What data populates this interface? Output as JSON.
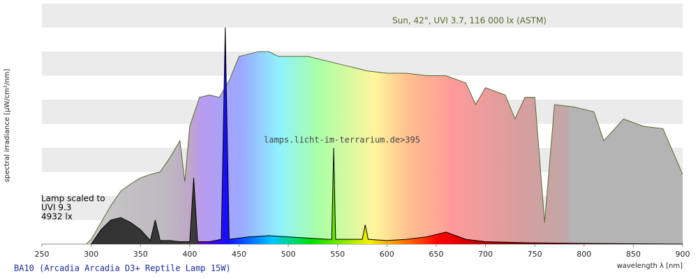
{
  "chart_data": {
    "type": "area",
    "x_label": "wavelength λ [nm]",
    "y_label": "spectral irradiance [µW/cm²/nm]",
    "xlim": [
      250,
      900
    ],
    "xticks": [
      250,
      300,
      350,
      400,
      450,
      500,
      550,
      600,
      650,
      700,
      750,
      800,
      850,
      900
    ],
    "ylim": [
      0,
      10
    ],
    "grid": true,
    "watermark": "lamps.licht-im-terrarium.de>395",
    "annotation": [
      "Lamp scaled to",
      "UVI 9.3",
      "4932 lx"
    ],
    "series": [
      {
        "name": "Sun, 42°, UVI 3.7, 116 000 lx (ASTM)",
        "color": "#556b2f",
        "x": [
          295,
          300,
          310,
          320,
          330,
          340,
          350,
          360,
          370,
          380,
          390,
          395,
          400,
          410,
          420,
          430,
          440,
          450,
          460,
          470,
          480,
          490,
          500,
          520,
          540,
          560,
          580,
          600,
          620,
          640,
          660,
          680,
          690,
          700,
          720,
          730,
          740,
          750,
          760,
          770,
          790,
          810,
          820,
          840,
          860,
          880,
          900
        ],
        "values": [
          0,
          0.2,
          0.9,
          1.6,
          2.2,
          2.5,
          2.75,
          2.9,
          3.0,
          3.6,
          4.3,
          2.6,
          4.9,
          6.1,
          6.2,
          6.1,
          6.8,
          7.8,
          7.9,
          8.0,
          8.0,
          7.8,
          7.8,
          7.8,
          7.6,
          7.4,
          7.2,
          7.1,
          7.1,
          7.0,
          7.0,
          6.7,
          5.8,
          6.5,
          6.2,
          5.2,
          6.1,
          6.1,
          0.9,
          5.8,
          5.7,
          5.5,
          4.3,
          5.2,
          4.9,
          4.8,
          2.9
        ]
      },
      {
        "name": "BA10 (Arcadia Arcadia D3+ Reptile Lamp 15W)",
        "color": "#000000",
        "x": [
          300,
          310,
          320,
          330,
          340,
          350,
          360,
          365,
          370,
          380,
          390,
          400,
          404,
          408,
          420,
          432,
          436,
          440,
          460,
          480,
          500,
          520,
          540,
          544,
          546,
          548,
          560,
          575,
          578,
          581,
          600,
          620,
          640,
          660,
          680,
          700,
          750,
          800,
          900
        ],
        "values": [
          0,
          0.6,
          1.0,
          1.1,
          0.9,
          0.6,
          0.15,
          1.0,
          0.15,
          0.15,
          0.1,
          0.1,
          2.75,
          0.1,
          0.1,
          0.2,
          9.0,
          0.2,
          0.3,
          0.35,
          0.3,
          0.25,
          0.2,
          0.2,
          4.0,
          0.2,
          0.2,
          0.2,
          0.8,
          0.2,
          0.15,
          0.2,
          0.3,
          0.5,
          0.2,
          0.1,
          0.05,
          0.03,
          0
        ]
      }
    ]
  }
}
